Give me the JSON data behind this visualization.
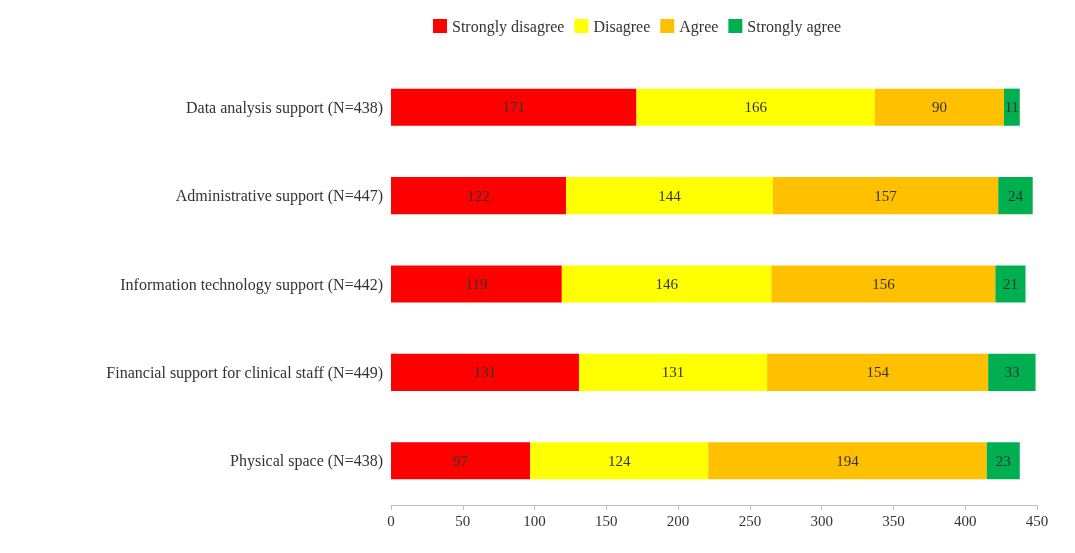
{
  "chart_data": {
    "type": "bar",
    "orientation": "horizontal",
    "stacked": true,
    "data_labels": true,
    "legend": "top",
    "grid": false,
    "categories": [
      "Data analysis support (N=438)",
      "Administrative support (N=447)",
      "Information technology support (N=442)",
      "Financial support for clinical staff (N=449)",
      "Physical space (N=438)"
    ],
    "xlim": [
      0,
      450
    ],
    "xticks": [
      0,
      50,
      100,
      150,
      200,
      250,
      300,
      350,
      400,
      450
    ],
    "series": [
      {
        "name": "Strongly disagree",
        "color": "#ff0000",
        "values": [
          171,
          122,
          119,
          131,
          97
        ]
      },
      {
        "name": "Disagree",
        "color": "#ffff00",
        "values": [
          166,
          144,
          146,
          131,
          124
        ]
      },
      {
        "name": "Agree",
        "color": "#ffc000",
        "values": [
          90,
          157,
          156,
          154,
          194
        ]
      },
      {
        "name": "Strongly agree",
        "color": "#00b050",
        "values": [
          11,
          24,
          21,
          33,
          23
        ]
      }
    ]
  }
}
